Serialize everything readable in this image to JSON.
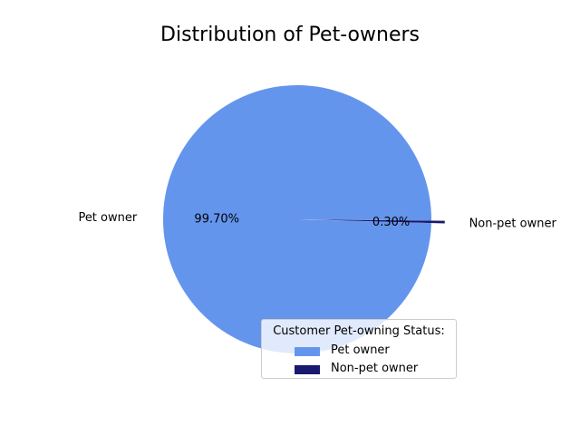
{
  "chart_data": {
    "type": "pie",
    "title": "Distribution of Pet-owners",
    "categories": [
      "Pet owner",
      "Non-pet owner"
    ],
    "values": [
      99.7,
      0.3
    ],
    "percent_labels": [
      "99.70%",
      "0.30%"
    ],
    "colors": [
      "#6495ED",
      "#191970"
    ],
    "explode": [
      0,
      0.1
    ],
    "legend": {
      "title": "Customer Pet-owning Status:",
      "placement": "lower-right",
      "entries": [
        "Pet owner",
        "Non-pet owner"
      ]
    }
  }
}
